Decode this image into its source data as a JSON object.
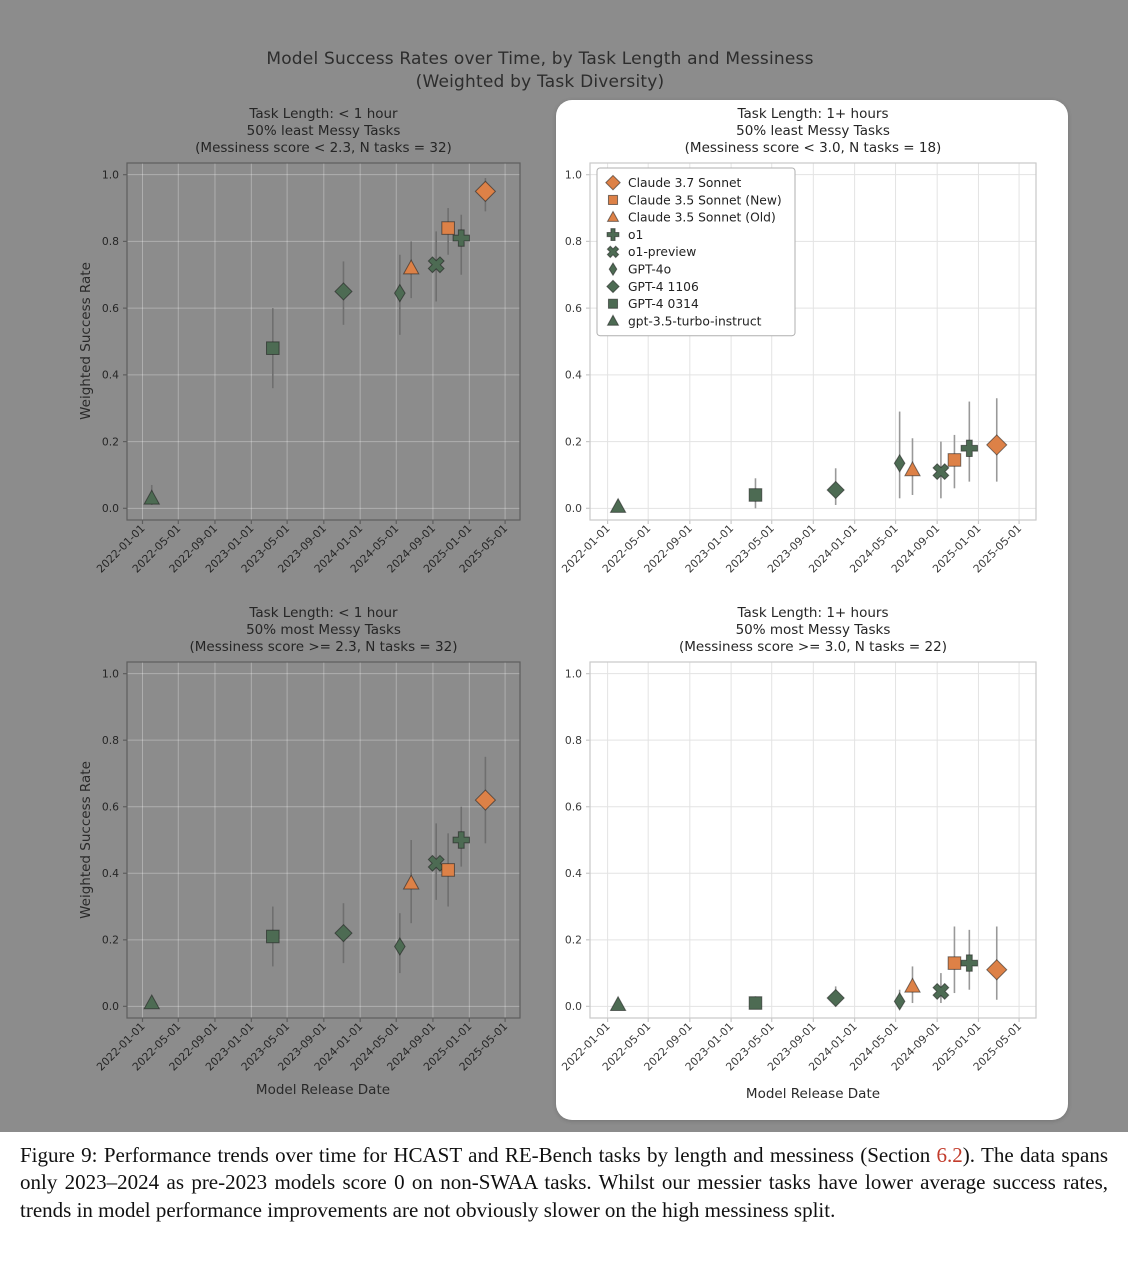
{
  "figure": {
    "title_line1": "Model Success Rates over Time, by Task Length and Messiness",
    "title_line2": "(Weighted by Task Diversity)"
  },
  "palette": {
    "page_gray": "#8c8c8c",
    "card_white": "#ffffff",
    "claude_orange": "#DD8147",
    "openai_green": "#4D6B53",
    "link_red": "#C23B2B",
    "text_dark": "#2d2d2d"
  },
  "models": [
    {
      "name": "Claude 3.7 Sonnet",
      "marker": "diamond-large",
      "color": "orange",
      "date": "2025-02-24"
    },
    {
      "name": "Claude 3.5 Sonnet (New)",
      "marker": "square",
      "color": "orange",
      "date": "2024-10-22"
    },
    {
      "name": "Claude 3.5 Sonnet (Old)",
      "marker": "triangle",
      "color": "orange",
      "date": "2024-06-20"
    },
    {
      "name": "o1",
      "marker": "plus",
      "color": "green",
      "date": "2024-12-05"
    },
    {
      "name": "o1-preview",
      "marker": "x",
      "color": "green",
      "date": "2024-09-12"
    },
    {
      "name": "GPT-4o",
      "marker": "thin-diamond",
      "color": "green",
      "date": "2024-05-13"
    },
    {
      "name": "GPT-4 1106",
      "marker": "diamond",
      "color": "green",
      "date": "2023-11-06"
    },
    {
      "name": "GPT-4 0314",
      "marker": "square",
      "color": "green",
      "date": "2023-03-14"
    },
    {
      "name": "gpt-3.5-turbo-instruct",
      "marker": "triangle",
      "color": "green",
      "date": "2022-02-01"
    }
  ],
  "axis": {
    "x_ticks": [
      "2022-01-01",
      "2022-05-01",
      "2022-09-01",
      "2023-01-01",
      "2023-05-01",
      "2023-09-01",
      "2024-01-01",
      "2024-05-01",
      "2024-09-01",
      "2025-01-01",
      "2025-05-01"
    ],
    "y_ticks": [
      0.0,
      0.2,
      0.4,
      0.6,
      0.8,
      1.0
    ],
    "xlim": [
      "2021-11-10",
      "2025-06-20"
    ],
    "ylim": [
      0,
      1
    ],
    "xlabel": "Model Release Date",
    "ylabel": "Weighted Success Rate"
  },
  "chart_data": [
    {
      "type": "scatter",
      "title_lines": [
        "Task Length: < 1 hour",
        "50% least Messy Tasks",
        "(Messiness score < 2.3, N tasks = 32)"
      ],
      "on_white": false,
      "show_legend": false,
      "points": [
        {
          "model": "gpt-3.5-turbo-instruct",
          "y": 0.03,
          "ylo": 0.01,
          "yhi": 0.07
        },
        {
          "model": "GPT-4 0314",
          "y": 0.48,
          "ylo": 0.36,
          "yhi": 0.6
        },
        {
          "model": "GPT-4 1106",
          "y": 0.65,
          "ylo": 0.55,
          "yhi": 0.74
        },
        {
          "model": "GPT-4o",
          "y": 0.645,
          "ylo": 0.52,
          "yhi": 0.76
        },
        {
          "model": "Claude 3.5 Sonnet (Old)",
          "y": 0.72,
          "ylo": 0.63,
          "yhi": 0.8
        },
        {
          "model": "o1-preview",
          "y": 0.73,
          "ylo": 0.62,
          "yhi": 0.83
        },
        {
          "model": "Claude 3.5 Sonnet (New)",
          "y": 0.84,
          "ylo": 0.76,
          "yhi": 0.9
        },
        {
          "model": "o1",
          "y": 0.81,
          "ylo": 0.7,
          "yhi": 0.88
        },
        {
          "model": "Claude 3.7 Sonnet",
          "y": 0.95,
          "ylo": 0.89,
          "yhi": 0.99
        }
      ]
    },
    {
      "type": "scatter",
      "title_lines": [
        "Task Length: 1+ hours",
        "50% least Messy Tasks",
        "(Messiness score < 3.0, N tasks = 18)"
      ],
      "on_white": true,
      "show_legend": true,
      "points": [
        {
          "model": "gpt-3.5-turbo-instruct",
          "y": 0.005,
          "ylo": 0.0,
          "yhi": 0.01
        },
        {
          "model": "GPT-4 0314",
          "y": 0.04,
          "ylo": 0.0,
          "yhi": 0.09
        },
        {
          "model": "GPT-4 1106",
          "y": 0.055,
          "ylo": 0.01,
          "yhi": 0.12
        },
        {
          "model": "GPT-4o",
          "y": 0.135,
          "ylo": 0.03,
          "yhi": 0.29
        },
        {
          "model": "Claude 3.5 Sonnet (Old)",
          "y": 0.115,
          "ylo": 0.04,
          "yhi": 0.21
        },
        {
          "model": "o1-preview",
          "y": 0.11,
          "ylo": 0.03,
          "yhi": 0.2
        },
        {
          "model": "Claude 3.5 Sonnet (New)",
          "y": 0.145,
          "ylo": 0.06,
          "yhi": 0.22
        },
        {
          "model": "o1",
          "y": 0.18,
          "ylo": 0.08,
          "yhi": 0.32
        },
        {
          "model": "Claude 3.7 Sonnet",
          "y": 0.19,
          "ylo": 0.08,
          "yhi": 0.33
        }
      ]
    },
    {
      "type": "scatter",
      "title_lines": [
        "Task Length: < 1 hour",
        "50% most Messy Tasks",
        "(Messiness score >= 2.3, N tasks = 32)"
      ],
      "on_white": false,
      "show_legend": false,
      "points": [
        {
          "model": "gpt-3.5-turbo-instruct",
          "y": 0.01,
          "ylo": 0.0,
          "yhi": 0.02
        },
        {
          "model": "GPT-4 0314",
          "y": 0.21,
          "ylo": 0.12,
          "yhi": 0.3
        },
        {
          "model": "GPT-4 1106",
          "y": 0.22,
          "ylo": 0.13,
          "yhi": 0.31
        },
        {
          "model": "GPT-4o",
          "y": 0.18,
          "ylo": 0.1,
          "yhi": 0.28
        },
        {
          "model": "Claude 3.5 Sonnet (Old)",
          "y": 0.37,
          "ylo": 0.25,
          "yhi": 0.5
        },
        {
          "model": "o1-preview",
          "y": 0.43,
          "ylo": 0.32,
          "yhi": 0.55
        },
        {
          "model": "Claude 3.5 Sonnet (New)",
          "y": 0.41,
          "ylo": 0.3,
          "yhi": 0.52
        },
        {
          "model": "o1",
          "y": 0.5,
          "ylo": 0.42,
          "yhi": 0.6
        },
        {
          "model": "Claude 3.7 Sonnet",
          "y": 0.62,
          "ylo": 0.49,
          "yhi": 0.75
        }
      ]
    },
    {
      "type": "scatter",
      "title_lines": [
        "Task Length: 1+ hours",
        "50% most Messy Tasks",
        "(Messiness score >= 3.0, N tasks = 22)"
      ],
      "on_white": true,
      "show_legend": false,
      "points": [
        {
          "model": "gpt-3.5-turbo-instruct",
          "y": 0.005,
          "ylo": 0.0,
          "yhi": 0.01
        },
        {
          "model": "GPT-4 0314",
          "y": 0.01,
          "ylo": 0.0,
          "yhi": 0.03
        },
        {
          "model": "GPT-4 1106",
          "y": 0.025,
          "ylo": 0.0,
          "yhi": 0.06
        },
        {
          "model": "GPT-4o",
          "y": 0.015,
          "ylo": 0.0,
          "yhi": 0.05
        },
        {
          "model": "Claude 3.5 Sonnet (Old)",
          "y": 0.06,
          "ylo": 0.01,
          "yhi": 0.12
        },
        {
          "model": "o1-preview",
          "y": 0.045,
          "ylo": 0.01,
          "yhi": 0.1
        },
        {
          "model": "Claude 3.5 Sonnet (New)",
          "y": 0.13,
          "ylo": 0.04,
          "yhi": 0.24
        },
        {
          "model": "o1",
          "y": 0.13,
          "ylo": 0.05,
          "yhi": 0.23
        },
        {
          "model": "Claude 3.7 Sonnet",
          "y": 0.11,
          "ylo": 0.02,
          "yhi": 0.24
        }
      ]
    }
  ],
  "caption": {
    "prefix": "Figure 9: ",
    "before_link": "Performance trends over time for HCAST and RE-Bench tasks by length and messiness (Section ",
    "link": "6.2",
    "after_link": "). The data spans only 2023–2024 as pre-2023 models score 0 on non-SWAA tasks. Whilst our messier tasks have lower average success rates, trends in model performance improvements are not obviously slower on the high messiness split."
  }
}
